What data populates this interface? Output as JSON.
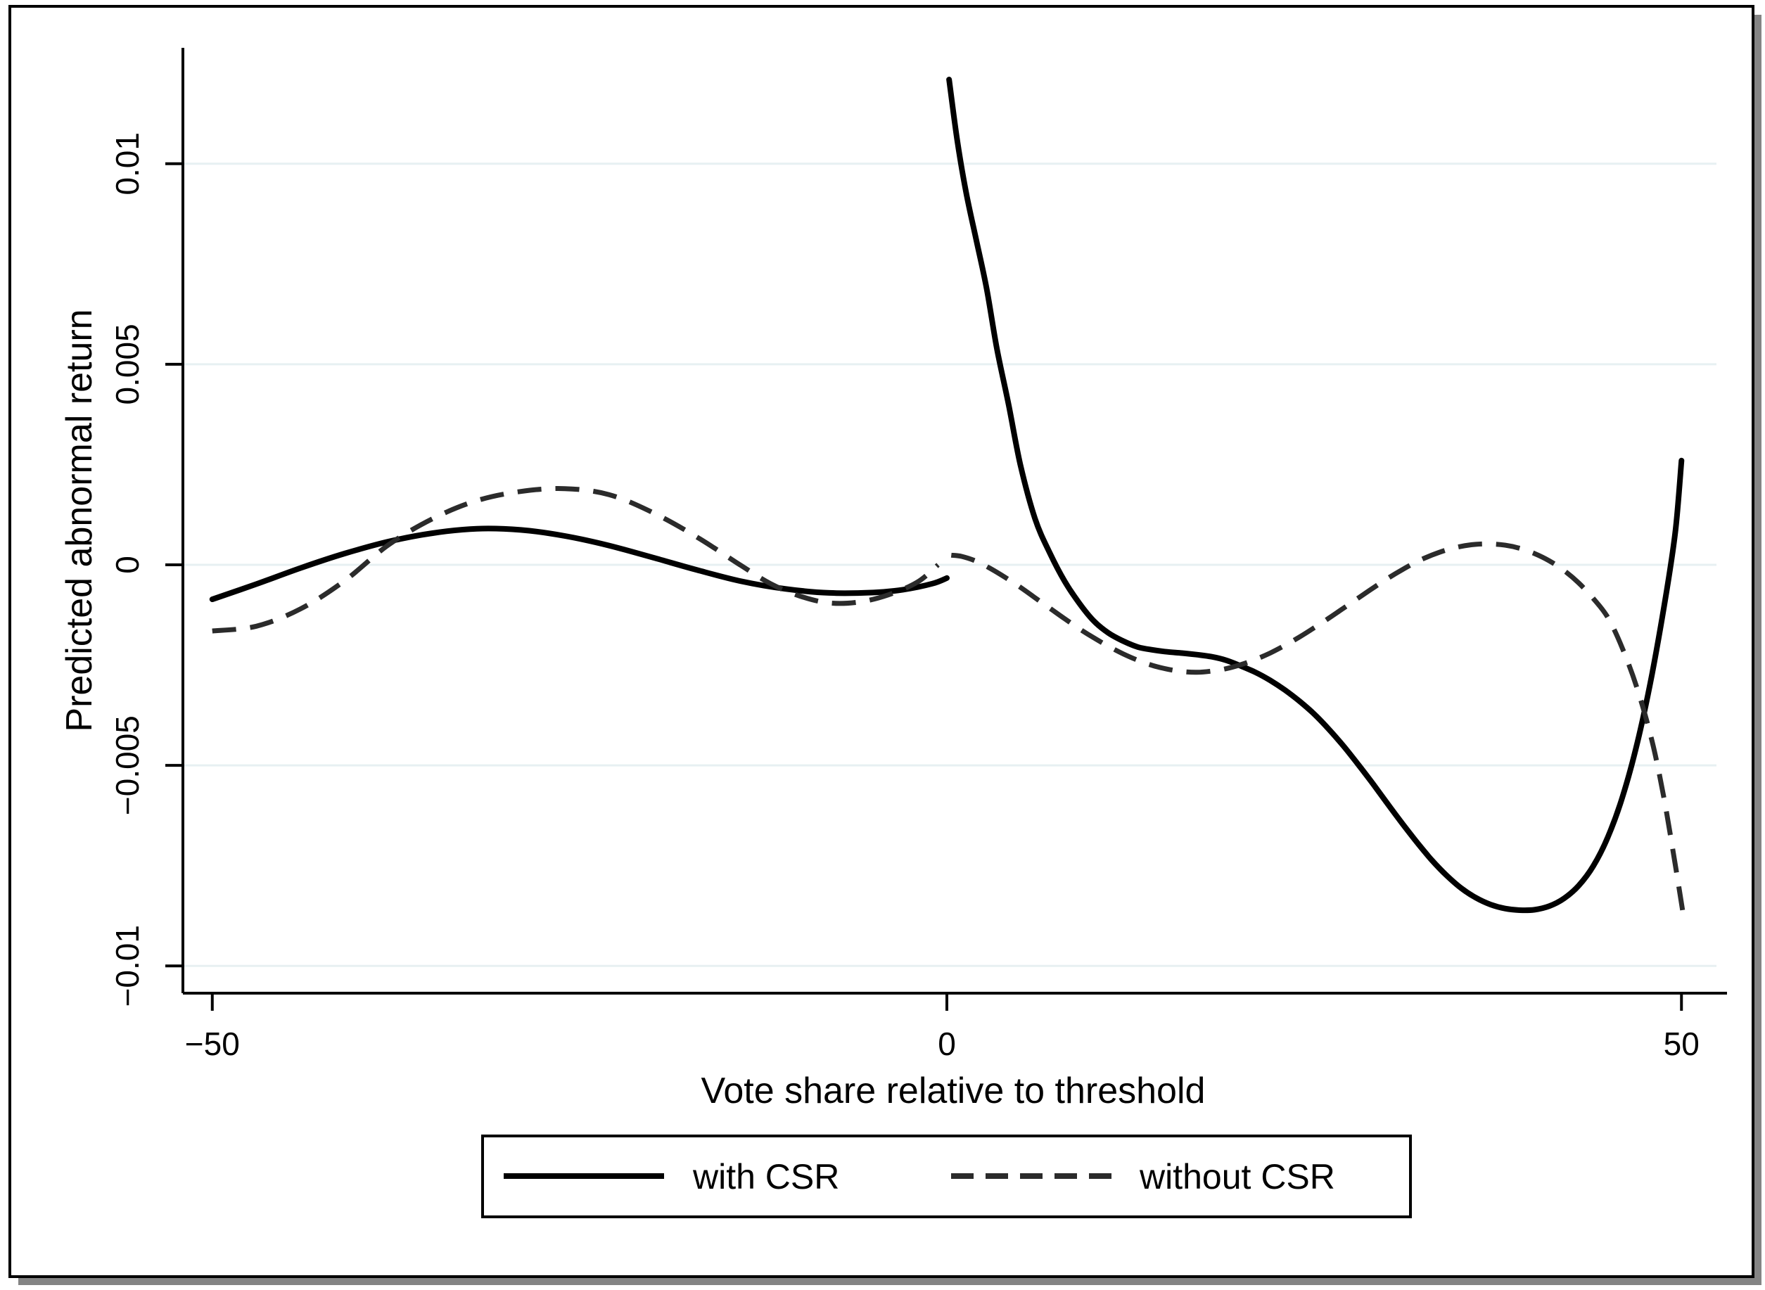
{
  "figure": {
    "background": "#ffffff",
    "border_color": "#000000",
    "shadow_color": "#848484"
  },
  "chart_data": {
    "type": "line",
    "title": "",
    "xlabel": "Vote share relative to threshold",
    "ylabel": "Predicted abnormal return",
    "xlim": [
      -52.0,
      53.1
    ],
    "ylim": [
      -0.01068,
      0.01289
    ],
    "grid": "horizontal",
    "gridline_color": "#e7f0f2",
    "axis_color": "#000000",
    "legend_position": "bottom-center",
    "x_ticks": [
      {
        "value": -50,
        "label": "−50"
      },
      {
        "value": 0,
        "label": "0"
      },
      {
        "value": 50,
        "label": "50"
      }
    ],
    "y_ticks": [
      {
        "value": 0.01,
        "label": "0.01"
      },
      {
        "value": 0.005,
        "label": "0.005"
      },
      {
        "value": 0,
        "label": "0"
      },
      {
        "value": -0.005,
        "label": "−0.005"
      },
      {
        "value": -0.01,
        "label": "−0.01"
      }
    ],
    "series": [
      {
        "name": "with CSR",
        "style": "solid",
        "color": "#000000",
        "width": 8,
        "segments": [
          [
            [
              -50,
              -0.00086
            ],
            [
              -47,
              -0.00048
            ],
            [
              -44,
              -8e-05
            ],
            [
              -41,
              0.00028
            ],
            [
              -38,
              0.00058
            ],
            [
              -35,
              0.00079
            ],
            [
              -32,
              0.0009
            ],
            [
              -29,
              0.00087
            ],
            [
              -26,
              0.00072
            ],
            [
              -23,
              0.00048
            ],
            [
              -20,
              0.00018
            ],
            [
              -17,
              -0.00013
            ],
            [
              -14,
              -0.00041
            ],
            [
              -11,
              -0.0006
            ],
            [
              -8,
              -0.0007
            ],
            [
              -5,
              -0.00069
            ],
            [
              -3,
              -0.00062
            ],
            [
              -1,
              -0.00047
            ],
            [
              0,
              -0.00033
            ]
          ],
          [
            [
              0.15,
              0.0121
            ],
            [
              0.7,
              0.0106
            ],
            [
              1.3,
              0.0093
            ],
            [
              2,
              0.0081
            ],
            [
              2.7,
              0.0069
            ],
            [
              3.4,
              0.0054
            ],
            [
              4.2,
              0.004
            ],
            [
              5,
              0.0025
            ],
            [
              6,
              0.00115
            ],
            [
              7,
              0.0003
            ],
            [
              8,
              -0.0004
            ],
            [
              9,
              -0.00095
            ],
            [
              10,
              -0.0014
            ],
            [
              11,
              -0.0017
            ],
            [
              12,
              -0.0019
            ],
            [
              13,
              -0.00205
            ],
            [
              14,
              -0.00212
            ],
            [
              15,
              -0.00217
            ],
            [
              16,
              -0.0022
            ],
            [
              17,
              -0.00224
            ],
            [
              18,
              -0.00229
            ],
            [
              19,
              -0.00238
            ],
            [
              20,
              -0.00252
            ],
            [
              21,
              -0.00268
            ],
            [
              22,
              -0.00288
            ],
            [
              23,
              -0.00312
            ],
            [
              24,
              -0.0034
            ],
            [
              25,
              -0.00372
            ],
            [
              26,
              -0.0041
            ],
            [
              27,
              -0.00452
            ],
            [
              28,
              -0.00498
            ],
            [
              29,
              -0.00546
            ],
            [
              30,
              -0.00596
            ],
            [
              31,
              -0.00645
            ],
            [
              32,
              -0.00692
            ],
            [
              33,
              -0.00736
            ],
            [
              34,
              -0.00774
            ],
            [
              35,
              -0.00806
            ],
            [
              36,
              -0.0083
            ],
            [
              37,
              -0.00847
            ],
            [
              38,
              -0.00857
            ],
            [
              39,
              -0.00861
            ],
            [
              40,
              -0.0086
            ],
            [
              41,
              -0.00851
            ],
            [
              42,
              -0.00832
            ],
            [
              43,
              -0.008
            ],
            [
              44,
              -0.00751
            ],
            [
              45,
              -0.00678
            ],
            [
              46,
              -0.00577
            ],
            [
              47,
              -0.00443
            ],
            [
              48,
              -0.00272
            ],
            [
              49,
              -0.00063
            ],
            [
              49.6,
              0.00088
            ],
            [
              50,
              0.0026
            ]
          ]
        ]
      },
      {
        "name": "without CSR",
        "style": "dashed",
        "color": "#2b2b2b",
        "width": 7,
        "segments": [
          [
            [
              -50,
              -0.00165
            ],
            [
              -47,
              -0.00153
            ],
            [
              -44,
              -0.0011
            ],
            [
              -41,
              -0.0004
            ],
            [
              -38,
              0.0005
            ],
            [
              -35,
              0.00115
            ],
            [
              -32,
              0.0016
            ],
            [
              -29,
              0.00183
            ],
            [
              -26,
              0.0019
            ],
            [
              -23,
              0.00175
            ],
            [
              -20,
              0.0013
            ],
            [
              -17,
              0.00069
            ],
            [
              -14,
              -2e-05
            ],
            [
              -12,
              -0.00047
            ],
            [
              -10,
              -0.00078
            ],
            [
              -8,
              -0.00095
            ],
            [
              -6,
              -0.00093
            ],
            [
              -4,
              -0.00075
            ],
            [
              -2,
              -0.00043
            ],
            [
              -0.6,
              0
            ]
          ],
          [
            [
              0.3,
              0.00024
            ],
            [
              1,
              0.00021
            ],
            [
              2,
              9e-05
            ],
            [
              3,
              -0.0001
            ],
            [
              4,
              -0.00032
            ],
            [
              5,
              -0.00056
            ],
            [
              6,
              -0.00082
            ],
            [
              7,
              -0.00108
            ],
            [
              8,
              -0.00134
            ],
            [
              9,
              -0.00159
            ],
            [
              10,
              -0.00182
            ],
            [
              11,
              -0.00203
            ],
            [
              12,
              -0.00222
            ],
            [
              13,
              -0.00238
            ],
            [
              14,
              -0.00251
            ],
            [
              15,
              -0.0026
            ],
            [
              16,
              -0.00266
            ],
            [
              17,
              -0.00268
            ],
            [
              18,
              -0.00265
            ],
            [
              19,
              -0.00259
            ],
            [
              20,
              -0.00249
            ],
            [
              21,
              -0.00236
            ],
            [
              22,
              -0.0022
            ],
            [
              23,
              -0.00201
            ],
            [
              24,
              -0.0018
            ],
            [
              25,
              -0.00157
            ],
            [
              26,
              -0.00133
            ],
            [
              27,
              -0.00108
            ],
            [
              28,
              -0.00083
            ],
            [
              29,
              -0.00058
            ],
            [
              30,
              -0.00034
            ],
            [
              31,
              -0.00012
            ],
            [
              32,
              8e-05
            ],
            [
              33,
              0.00024
            ],
            [
              34,
              0.00037
            ],
            [
              35,
              0.00046
            ],
            [
              36,
              0.00051
            ],
            [
              37,
              0.00052
            ],
            [
              38,
              0.00049
            ],
            [
              39,
              0.00041
            ],
            [
              40,
              0.00028
            ],
            [
              41,
              0.0001
            ],
            [
              42,
              -0.00014
            ],
            [
              43,
              -0.00045
            ],
            [
              44,
              -0.00084
            ],
            [
              45,
              -0.00132
            ],
            [
              46,
              -0.0021
            ],
            [
              47,
              -0.0031
            ],
            [
              48,
              -0.0044
            ],
            [
              48.8,
              -0.0058
            ],
            [
              49.5,
              -0.0073
            ],
            [
              50.2,
              -0.0089
            ]
          ]
        ]
      }
    ]
  },
  "legend": {
    "items": [
      {
        "label": "with CSR",
        "style": "solid"
      },
      {
        "label": "without CSR",
        "style": "dashed"
      }
    ]
  }
}
